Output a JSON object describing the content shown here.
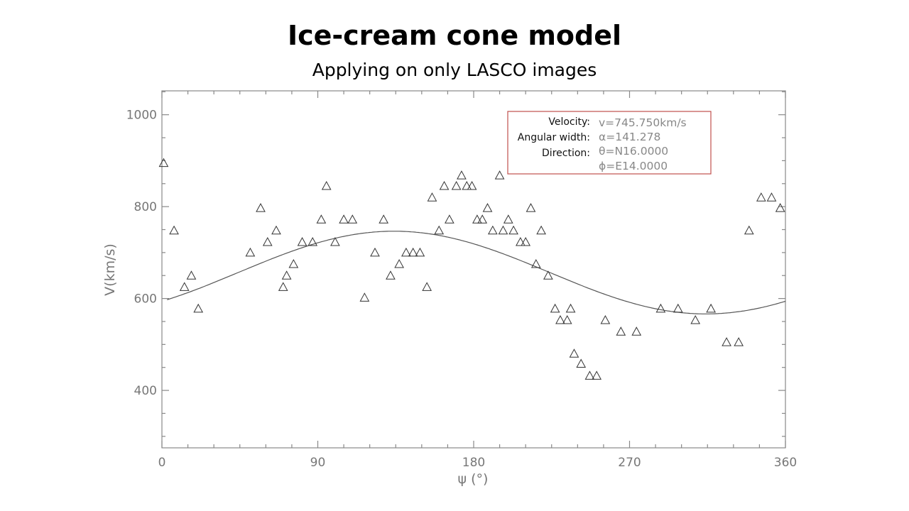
{
  "slide": {
    "title": "Ice-cream cone model",
    "subtitle": "Applying on only LASCO images"
  },
  "chart_data": {
    "type": "scatter",
    "xlabel": "ψ (°)",
    "ylabel": "V(km/s)",
    "xlim": [
      0,
      360
    ],
    "ylim": [
      275,
      1052
    ],
    "xticks": [
      0,
      90,
      180,
      270,
      360
    ],
    "yticks": [
      400,
      600,
      800,
      1000
    ],
    "grid": false,
    "series": [
      {
        "marker": "triangle",
        "points": [
          [
            1,
            895
          ],
          [
            7,
            748
          ],
          [
            13,
            625
          ],
          [
            17,
            650
          ],
          [
            21,
            578
          ],
          [
            51,
            700
          ],
          [
            57,
            797
          ],
          [
            61,
            723
          ],
          [
            66,
            748
          ],
          [
            70,
            625
          ],
          [
            72,
            650
          ],
          [
            76,
            675
          ],
          [
            81,
            723
          ],
          [
            87,
            723
          ],
          [
            92,
            772
          ],
          [
            95,
            845
          ],
          [
            100,
            723
          ],
          [
            105,
            772
          ],
          [
            110,
            772
          ],
          [
            117,
            602
          ],
          [
            123,
            700
          ],
          [
            128,
            772
          ],
          [
            132,
            650
          ],
          [
            137,
            675
          ],
          [
            141,
            700
          ],
          [
            145,
            700
          ],
          [
            149,
            700
          ],
          [
            153,
            625
          ],
          [
            156,
            820
          ],
          [
            160,
            748
          ],
          [
            163,
            845
          ],
          [
            166,
            772
          ],
          [
            170,
            845
          ],
          [
            173,
            868
          ],
          [
            176,
            845
          ],
          [
            179,
            845
          ],
          [
            182,
            772
          ],
          [
            185,
            772
          ],
          [
            188,
            797
          ],
          [
            191,
            748
          ],
          [
            195,
            868
          ],
          [
            197,
            748
          ],
          [
            200,
            772
          ],
          [
            203,
            748
          ],
          [
            207,
            723
          ],
          [
            210,
            723
          ],
          [
            213,
            797
          ],
          [
            216,
            675
          ],
          [
            219,
            748
          ],
          [
            223,
            650
          ],
          [
            227,
            578
          ],
          [
            230,
            553
          ],
          [
            234,
            553
          ],
          [
            236,
            578
          ],
          [
            238,
            480
          ],
          [
            242,
            458
          ],
          [
            247,
            432
          ],
          [
            251,
            432
          ],
          [
            256,
            553
          ],
          [
            265,
            528
          ],
          [
            274,
            528
          ],
          [
            288,
            578
          ],
          [
            298,
            578
          ],
          [
            308,
            553
          ],
          [
            317,
            578
          ],
          [
            326,
            505
          ],
          [
            333,
            505
          ],
          [
            339,
            748
          ],
          [
            346,
            820
          ],
          [
            352,
            820
          ],
          [
            357,
            797
          ]
        ]
      },
      {
        "type": "line",
        "fit": {
          "center": 656.5,
          "amplitude": 90,
          "phase_deg": 134,
          "x_start": 3,
          "x_end": 360
        }
      }
    ],
    "annotation": {
      "border_color": "#c0504d",
      "rows": [
        {
          "label": "Velocity:",
          "value": "v=745.750km/s"
        },
        {
          "label": "Angular width:",
          "value": "α=141.278"
        },
        {
          "label": "Direction:",
          "value": "θ=N16.0000"
        },
        {
          "label": "",
          "value": "ϕ=E14.0000"
        }
      ]
    }
  }
}
